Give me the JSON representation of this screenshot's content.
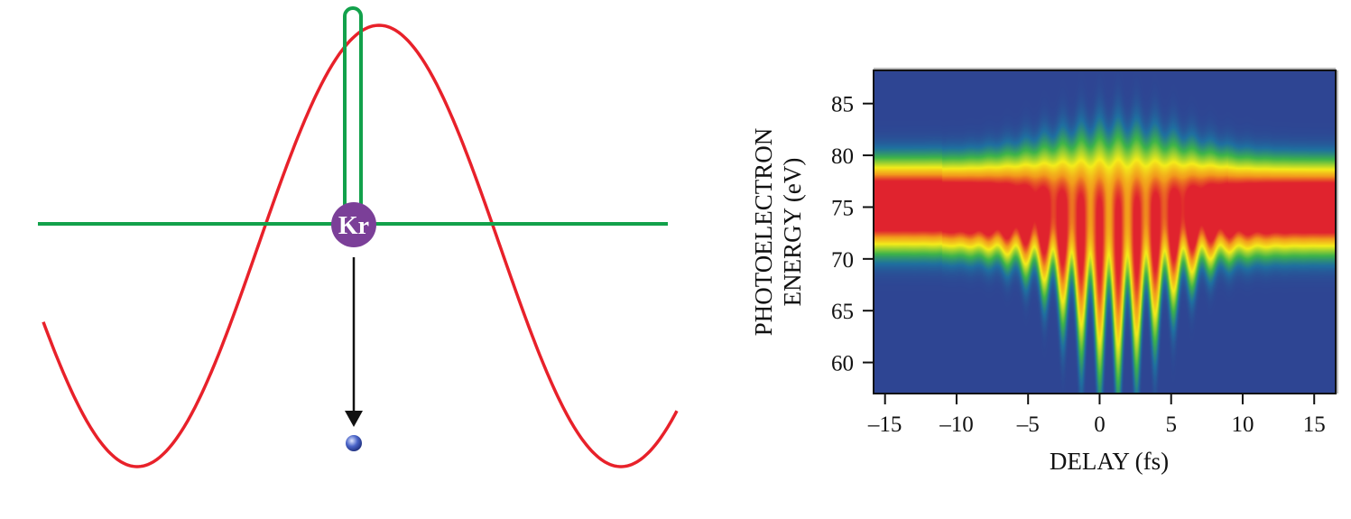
{
  "diagram": {
    "atom_label": "Kr",
    "colors": {
      "laser_field": "#e8212a",
      "xuv_pulse": "#12a14b",
      "atom": "#7b3f98",
      "electron": "#4a64c8"
    }
  },
  "chart_data": {
    "type": "heatmap",
    "title": "",
    "xlabel": "DELAY (fs)",
    "ylabel_lines": [
      "PHOTOELECTRON",
      "ENERGY (eV)"
    ],
    "xlim": [
      -15.8,
      16.5
    ],
    "ylim": [
      57,
      88.2
    ],
    "xticks": [
      -15,
      -10,
      -5,
      0,
      5,
      10,
      15
    ],
    "xtick_labels": [
      "–15",
      "–10",
      "–5",
      "0",
      "5",
      "10",
      "15"
    ],
    "yticks": [
      60,
      65,
      70,
      75,
      80,
      85
    ],
    "ytick_labels": [
      "60",
      "65",
      "70",
      "75",
      "80",
      "85"
    ],
    "band_center_eV": 75,
    "band_halfwidth_eV": 3.5,
    "streaking_window_fs": [
      -6,
      8
    ],
    "fringe_period_fs": 1.3,
    "max_streak_low_eV": 63,
    "max_streak_high_eV": 82,
    "colormap": [
      "#2e4593",
      "#1f6fa0",
      "#3db34a",
      "#f4ec1a",
      "#f29a1c",
      "#e0232e"
    ]
  }
}
